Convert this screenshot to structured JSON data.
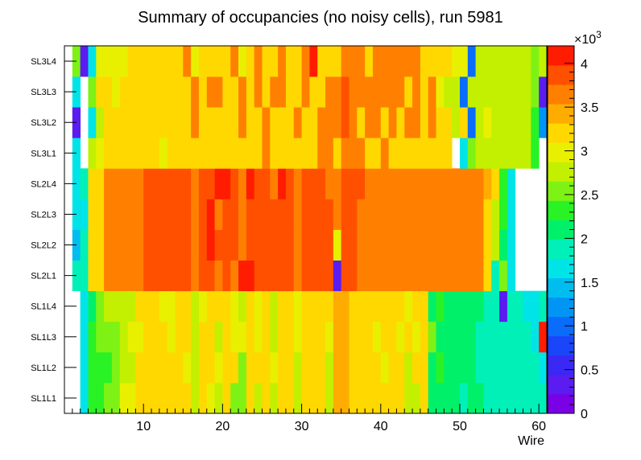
{
  "chart_data": {
    "type": "heatmap",
    "title": "Summary of occupancies (no noisy cells), run 5981",
    "xlabel": "Wire",
    "ylabel": "",
    "xlim": [
      0,
      61
    ],
    "x_ticks": [
      10,
      20,
      30,
      40,
      50,
      60
    ],
    "y_categories": [
      "SL1L1",
      "SL1L2",
      "SL1L3",
      "SL1L4",
      "SL2L1",
      "SL2L2",
      "SL2L3",
      "SL2L4",
      "SL3L1",
      "SL3L2",
      "SL3L3",
      "SL3L4"
    ],
    "z_range": [
      0,
      4200
    ],
    "z_multiplier_label": "×10",
    "z_multiplier_exponent": "3",
    "colorbar_ticks": [
      "0",
      "0.5",
      "1",
      "1.5",
      "2",
      "2.5",
      "3",
      "3.5",
      "4"
    ],
    "palette": [
      "#7a00e6",
      "#5a1cf0",
      "#3a28f5",
      "#1a45f8",
      "#0a6cfa",
      "#0095f5",
      "#00bdf0",
      "#00e4e8",
      "#00f0b8",
      "#00f06a",
      "#29f225",
      "#7ef214",
      "#c2f000",
      "#e8f000",
      "#ffd800",
      "#ffac00",
      "#ff8000",
      "#ff5000",
      "#ff1c00"
    ],
    "rows": {
      "SL1L1": [
        null,
        1700,
        2300,
        2300,
        2600,
        2600,
        2900,
        2900,
        3100,
        3100,
        3100,
        3100,
        3100,
        3100,
        3100,
        2800,
        3100,
        3000,
        2800,
        3100,
        2500,
        2500,
        3100,
        2700,
        3100,
        2800,
        3100,
        3100,
        2700,
        3100,
        3100,
        3100,
        2800,
        3500,
        3500,
        3100,
        3100,
        3100,
        3100,
        3100,
        3100,
        3100,
        2700,
        2700,
        3100,
        2200,
        2000,
        2000,
        2000,
        1900,
        2000,
        2000,
        1900,
        1800,
        1900,
        1800,
        1800,
        1800,
        1800,
        1800
      ],
      "SL1L2": [
        null,
        1600,
        2300,
        2300,
        2300,
        2600,
        2700,
        2700,
        3100,
        3100,
        3100,
        3100,
        3100,
        3100,
        2900,
        2700,
        3100,
        3100,
        3000,
        3100,
        3100,
        2600,
        3100,
        3100,
        3100,
        2900,
        3100,
        3100,
        2800,
        3100,
        3100,
        3100,
        2800,
        3500,
        3500,
        3100,
        3100,
        3100,
        3100,
        3000,
        3100,
        3100,
        2700,
        3100,
        3100,
        2200,
        2300,
        2000,
        2000,
        2000,
        2000,
        1900,
        1800,
        1800,
        1900,
        1800,
        1800,
        1800,
        1800,
        1700
      ],
      "SL1L3": [
        null,
        1700,
        2300,
        2600,
        2600,
        2600,
        2800,
        2900,
        3000,
        3100,
        3100,
        3100,
        3000,
        3100,
        3100,
        2700,
        3100,
        3100,
        2800,
        3100,
        3000,
        3000,
        3100,
        2900,
        3100,
        2800,
        3100,
        3100,
        3000,
        3100,
        3100,
        3200,
        3000,
        3500,
        3500,
        3100,
        3100,
        3100,
        3000,
        3100,
        3100,
        3000,
        3100,
        3000,
        3100,
        2600,
        2000,
        2000,
        2000,
        2000,
        2000,
        1900,
        1800,
        1800,
        1900,
        1800,
        1800,
        1800,
        1700,
        4000
      ],
      "SL1L4": [
        null,
        1600,
        2200,
        2600,
        2700,
        2700,
        2700,
        2700,
        3100,
        3100,
        3100,
        2900,
        3000,
        3100,
        3100,
        2800,
        3000,
        3100,
        3100,
        3100,
        3000,
        2700,
        3100,
        3000,
        3100,
        2800,
        3100,
        3100,
        2900,
        3100,
        3100,
        3100,
        3300,
        3500,
        3500,
        3100,
        3100,
        3100,
        3100,
        3100,
        3100,
        3100,
        2900,
        3100,
        3100,
        2200,
        2300,
        2000,
        2000,
        2000,
        2000,
        2000,
        1900,
        1800,
        300,
        1900,
        1800,
        1700,
        1700,
        1800
      ],
      "SL2L1": [
        1900,
        1800,
        3300,
        3300,
        3600,
        3600,
        3600,
        3600,
        3600,
        3900,
        3900,
        3900,
        3900,
        3900,
        3900,
        3600,
        3900,
        3900,
        3600,
        3900,
        3600,
        4100,
        4100,
        3900,
        3900,
        3900,
        3900,
        3900,
        3600,
        3900,
        3900,
        3900,
        3900,
        300,
        3900,
        3900,
        3600,
        3600,
        3600,
        3600,
        3600,
        3600,
        3600,
        3600,
        3600,
        3600,
        3600,
        3600,
        3600,
        3600,
        3600,
        3600,
        3300,
        1800,
        2600,
        1700,
        null,
        null,
        null,
        null
      ],
      "SL2L2": [
        1500,
        1800,
        3200,
        3300,
        3600,
        3600,
        3600,
        3600,
        3600,
        3900,
        3900,
        3900,
        3900,
        3900,
        3900,
        3600,
        3900,
        4000,
        3900,
        3900,
        3900,
        3600,
        3900,
        3900,
        3900,
        3900,
        3900,
        3900,
        3600,
        3900,
        3900,
        3900,
        3900,
        3000,
        3900,
        3900,
        3600,
        3600,
        3600,
        3600,
        3600,
        3600,
        3600,
        3600,
        3600,
        3600,
        3600,
        3600,
        3600,
        3600,
        3600,
        3600,
        3300,
        2700,
        2200,
        1700,
        null,
        null,
        null,
        null
      ],
      "SL2L3": [
        1600,
        1700,
        3200,
        3300,
        3600,
        3600,
        3600,
        3600,
        3600,
        3900,
        3900,
        3900,
        3900,
        3900,
        3900,
        3600,
        3900,
        4000,
        3600,
        3900,
        3900,
        3600,
        3900,
        3900,
        3900,
        3900,
        3900,
        3900,
        3600,
        3900,
        3900,
        3900,
        3900,
        3600,
        3900,
        3900,
        3600,
        3600,
        3600,
        3600,
        3600,
        3600,
        3600,
        3600,
        3600,
        3600,
        3600,
        3600,
        3600,
        3600,
        3600,
        3600,
        3300,
        2700,
        2300,
        1700,
        null,
        null,
        null,
        null
      ],
      "SL2L4": [
        1700,
        1800,
        3300,
        3300,
        3600,
        3600,
        3600,
        3600,
        3600,
        3900,
        3900,
        3900,
        3900,
        3900,
        3900,
        3600,
        3900,
        3900,
        4000,
        4000,
        3900,
        3600,
        4000,
        3900,
        3900,
        3600,
        4000,
        3900,
        3600,
        3900,
        3900,
        3900,
        3600,
        3600,
        3900,
        3900,
        3900,
        3600,
        3600,
        3600,
        3600,
        3600,
        3600,
        3600,
        3600,
        3600,
        3600,
        3600,
        3600,
        3600,
        3600,
        3600,
        3400,
        3100,
        2300,
        1700,
        null,
        null,
        null,
        null
      ],
      "SL3L1": [
        1600,
        null,
        2700,
        3000,
        3100,
        3300,
        3100,
        3300,
        3300,
        3300,
        3300,
        3000,
        3300,
        3300,
        3300,
        3300,
        3100,
        3300,
        3300,
        3300,
        3300,
        3300,
        3300,
        3300,
        3600,
        3300,
        3300,
        3300,
        3300,
        3300,
        3300,
        3600,
        3600,
        3300,
        3600,
        3600,
        3600,
        3300,
        3300,
        3600,
        3300,
        3300,
        3300,
        3300,
        3300,
        3300,
        3300,
        3300,
        null,
        1700,
        2600,
        2700,
        2800,
        2800,
        2800,
        2800,
        2800,
        2800,
        2400,
        null
      ],
      "SL3L2": [
        300,
        null,
        1700,
        2700,
        3300,
        3300,
        3300,
        3300,
        3300,
        3100,
        3300,
        3300,
        3100,
        3300,
        3300,
        3600,
        3300,
        3300,
        3300,
        3300,
        3300,
        3600,
        3300,
        3300,
        3600,
        3300,
        3300,
        3300,
        3600,
        3300,
        3300,
        3600,
        3600,
        3600,
        3900,
        3600,
        3300,
        3600,
        3600,
        3300,
        3600,
        3300,
        3600,
        3600,
        3300,
        3600,
        3100,
        3100,
        2800,
        3100,
        1100,
        2800,
        2900,
        2700,
        2700,
        2700,
        2700,
        2700,
        2400,
        1300
      ],
      "SL3L3": [
        1600,
        null,
        2600,
        3300,
        3300,
        3000,
        3300,
        3300,
        3300,
        3300,
        3300,
        3300,
        3100,
        3300,
        3300,
        3600,
        3300,
        3600,
        3600,
        3300,
        3300,
        3600,
        3300,
        3600,
        3300,
        3600,
        3600,
        3300,
        3300,
        3600,
        3300,
        3300,
        3600,
        3600,
        3900,
        3600,
        3600,
        3600,
        3600,
        3600,
        3600,
        3600,
        3300,
        3600,
        3300,
        3600,
        3000,
        2700,
        2800,
        1100,
        2700,
        2700,
        2700,
        2700,
        2700,
        2700,
        2700,
        2700,
        2500,
        300
      ],
      "SL3L4": [
        2500,
        300,
        1600,
        3000,
        3000,
        3000,
        3000,
        3200,
        3300,
        3300,
        3300,
        3300,
        3300,
        3300,
        3600,
        3000,
        3300,
        3300,
        3300,
        3300,
        3600,
        3000,
        3300,
        3600,
        3300,
        3300,
        3600,
        3300,
        3300,
        3600,
        4000,
        3300,
        3300,
        3300,
        3600,
        3600,
        3600,
        3300,
        3600,
        3600,
        3600,
        3600,
        3600,
        3600,
        3300,
        3300,
        3300,
        3300,
        3000,
        3000,
        1100,
        2800,
        2800,
        2800,
        2700,
        2700,
        2700,
        2700,
        2500,
        2800
      ]
    }
  }
}
